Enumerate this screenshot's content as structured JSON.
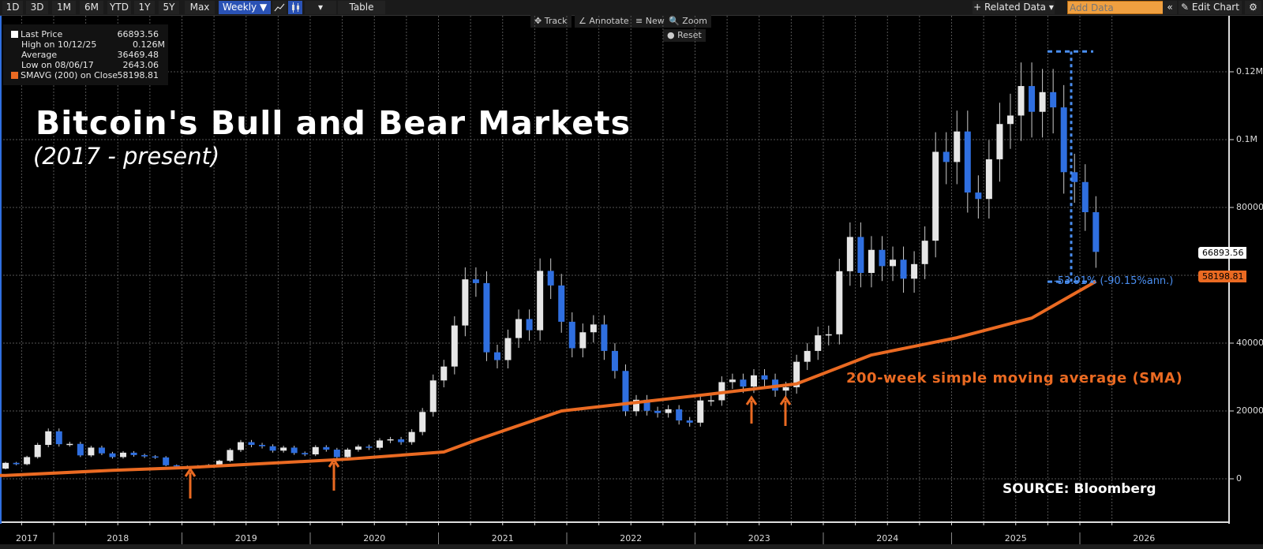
{
  "toolbar": {
    "ranges": [
      "1D",
      "3D",
      "1M",
      "6M",
      "YTD",
      "1Y",
      "5Y",
      "Max"
    ],
    "frequency": "Weekly ▼",
    "line_icon": "line-chart-icon",
    "candle_icon": "candlestick-icon",
    "dropdown": "▾",
    "table": "Table",
    "related_data": "+ Related Data ▾",
    "add_data_placeholder": "Add Data",
    "collapse": "«",
    "edit_chart": "✎ Edit Chart",
    "settings": "⚙"
  },
  "chart_tools": {
    "track": "✥ Track",
    "annotate": "∠ Annotate",
    "news": "≡ News",
    "zoom": "🔍 Zoom",
    "reset": "● Reset"
  },
  "legend": [
    {
      "label": "Last Price",
      "value": "66893.56",
      "color": "#ffffff"
    },
    {
      "label": "High on 10/12/25",
      "value": "0.126M"
    },
    {
      "label": "Average",
      "value": "36469.48"
    },
    {
      "label": "Low on 08/06/17",
      "value": "2643.06"
    },
    {
      "label": "SMAVG (200)  on Close",
      "value": "58198.81",
      "color": "#ea6a22"
    }
  ],
  "annotations": {
    "title": "Bitcoin's Bull and Bear Markets",
    "subtitle": "(2017 - present)",
    "sma_label": "200-week simple moving average (SMA)",
    "source": "SOURCE: Bloomberg",
    "drawdown": "-53.91% (-90.15%ann.)"
  },
  "price_tags": {
    "last": "66893.56",
    "sma": "58198.81"
  },
  "colors": {
    "up": "#e6e6e6",
    "down": "#2f6fe0",
    "sma": "#ea6a22",
    "accent": "#2a52b5",
    "drawdown": "#4a8ef0"
  },
  "chart_data": {
    "type": "candlestick",
    "frequency": "weekly",
    "ylim": [
      -10000,
      130000
    ],
    "yticks": [
      {
        "v": 0,
        "label": "0"
      },
      {
        "v": 20000,
        "label": "20000"
      },
      {
        "v": 40000,
        "label": "40000"
      },
      {
        "v": 60000,
        "label": "60000"
      },
      {
        "v": 80000,
        "label": "80000"
      },
      {
        "v": 100000,
        "label": "0.1M"
      },
      {
        "v": 120000,
        "label": "0.12M"
      }
    ],
    "xticks": [
      "2017",
      "2018",
      "2019",
      "2020",
      "2021",
      "2022",
      "2023",
      "2024",
      "2025",
      "2026"
    ],
    "grid": true,
    "price_series": {
      "name": "Last Price",
      "dates": [
        "2017-08",
        "2017-09",
        "2017-10",
        "2017-11",
        "2017-12",
        "2018-01",
        "2018-02",
        "2018-03",
        "2018-04",
        "2018-05",
        "2018-06",
        "2018-07",
        "2018-08",
        "2018-09",
        "2018-10",
        "2018-11",
        "2018-12",
        "2019-01",
        "2019-02",
        "2019-03",
        "2019-04",
        "2019-05",
        "2019-06",
        "2019-07",
        "2019-08",
        "2019-09",
        "2019-10",
        "2019-11",
        "2019-12",
        "2020-01",
        "2020-02",
        "2020-03",
        "2020-04",
        "2020-05",
        "2020-06",
        "2020-07",
        "2020-08",
        "2020-09",
        "2020-10",
        "2020-11",
        "2020-12",
        "2021-01",
        "2021-02",
        "2021-03",
        "2021-04",
        "2021-05",
        "2021-06",
        "2021-07",
        "2021-08",
        "2021-09",
        "2021-10",
        "2021-11",
        "2021-12",
        "2022-01",
        "2022-02",
        "2022-03",
        "2022-04",
        "2022-05",
        "2022-06",
        "2022-07",
        "2022-08",
        "2022-09",
        "2022-10",
        "2022-11",
        "2022-12",
        "2023-01",
        "2023-02",
        "2023-03",
        "2023-04",
        "2023-05",
        "2023-06",
        "2023-07",
        "2023-08",
        "2023-09",
        "2023-10",
        "2023-11",
        "2023-12",
        "2024-01",
        "2024-02",
        "2024-03",
        "2024-04",
        "2024-05",
        "2024-06",
        "2024-07",
        "2024-08",
        "2024-09",
        "2024-10",
        "2024-11",
        "2024-12",
        "2025-01",
        "2025-02",
        "2025-03",
        "2025-04",
        "2025-05",
        "2025-06",
        "2025-07",
        "2025-08",
        "2025-09",
        "2025-10",
        "2025-11",
        "2025-12",
        "2026-01",
        "2026-02"
      ],
      "close": [
        4700,
        4300,
        6400,
        10000,
        14000,
        10200,
        10300,
        6900,
        9200,
        7500,
        6400,
        7700,
        7000,
        6600,
        6300,
        4000,
        3700,
        3450,
        3800,
        4100,
        5300,
        8500,
        10800,
        10000,
        9600,
        8300,
        9200,
        7600,
        7200,
        9350,
        8600,
        6400,
        8600,
        9500,
        9150,
        11300,
        11650,
        10800,
        13800,
        19700,
        29000,
        33100,
        45200,
        58800,
        57700,
        37300,
        35000,
        41500,
        47100,
        43800,
        61300,
        57000,
        46300,
        38500,
        43200,
        45500,
        37700,
        31800,
        19900,
        23300,
        20050,
        19400,
        20500,
        17200,
        16550,
        23100,
        23150,
        28500,
        29250,
        27200,
        30500,
        29250,
        26000,
        27000,
        34500,
        37700,
        42300,
        42600,
        61200,
        71300,
        60700,
        67500,
        62700,
        64600,
        59000,
        63300,
        70200,
        96400,
        93400,
        102400,
        84400,
        82500,
        94200,
        104600,
        107100,
        115800,
        108200,
        114000,
        109500,
        90400,
        87500,
        78600,
        66893.56
      ]
    },
    "sma_series": {
      "name": "SMAVG (200) on Close",
      "points": [
        [
          "2017-08",
          1000
        ],
        [
          "2018-06",
          2500
        ],
        [
          "2019-01",
          3300
        ],
        [
          "2020-04",
          5800
        ],
        [
          "2021-01",
          7900
        ],
        [
          "2021-04",
          11400
        ],
        [
          "2021-12",
          20000
        ],
        [
          "2022-07",
          22500
        ],
        [
          "2023-02",
          25000
        ],
        [
          "2023-10",
          28000
        ],
        [
          "2024-05",
          36500
        ],
        [
          "2025-01",
          41600
        ],
        [
          "2025-08",
          47400
        ],
        [
          "2026-02",
          58198.81
        ]
      ]
    },
    "drawdown": {
      "from": 126000,
      "to": 58100,
      "label": "-53.91% (-90.15%ann.)"
    }
  }
}
